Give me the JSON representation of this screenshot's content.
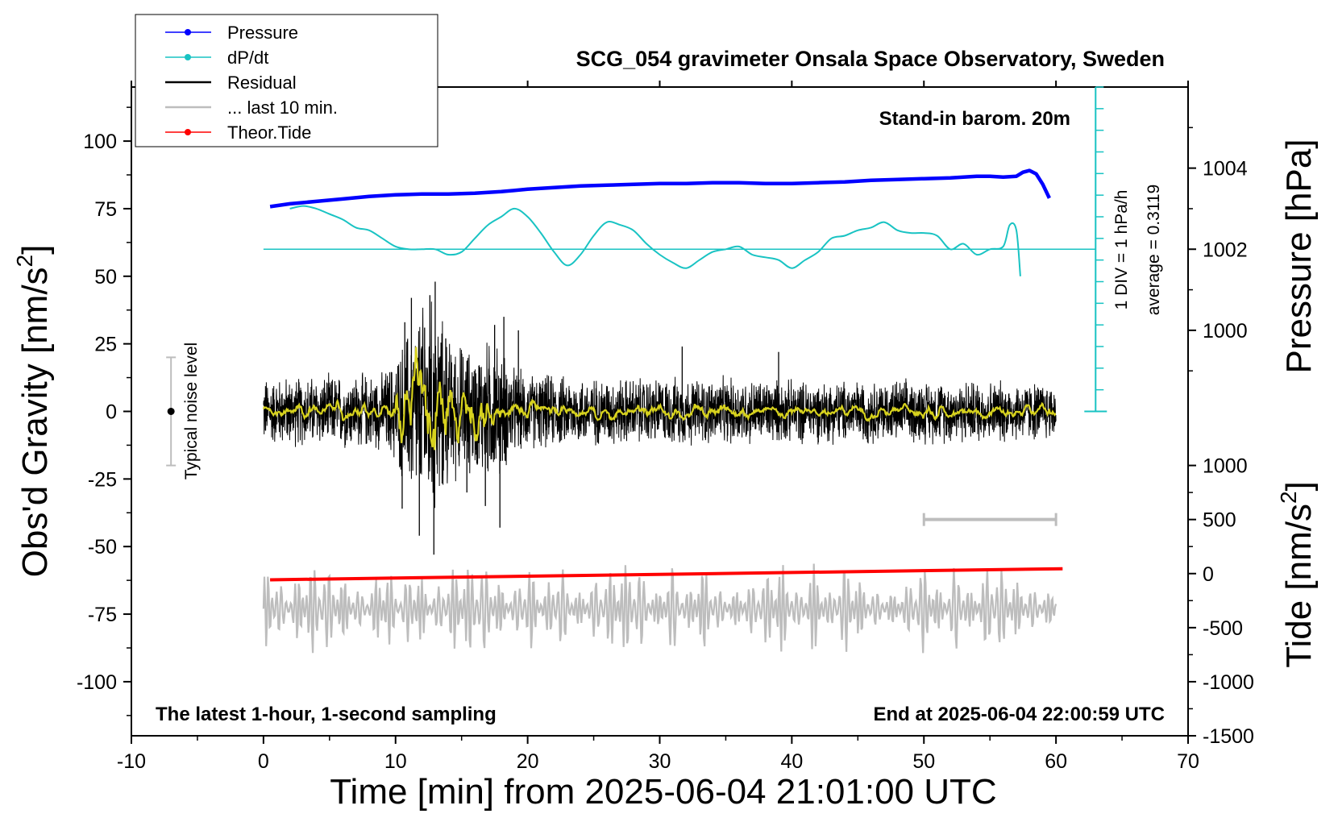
{
  "chart_data": {
    "type": "line",
    "title": "SCG_054 gravimeter Onsala Space Observatory, Sweden",
    "subtitle_right": "Stand-in barom. 20m",
    "footer_left": "The latest 1-hour, 1-second sampling",
    "footer_right": "End at 2025-06-04 22:00:59 UTC",
    "xlabel": "Time [min] from 2025-06-04 21:01:00 UTC",
    "ylabel_left": "Obs'd Gravity [nm/s",
    "ylabel_left_sup": "2",
    "ylabel_left_close": "]",
    "ylabel_right_top": "Pressure [hPa]",
    "ylabel_right_bottom": "Tide [nm/s",
    "ylabel_right_bottom_sup": "2",
    "ylabel_right_bottom_close": "]",
    "xlim": [
      -10,
      70
    ],
    "ylim_left": [
      -120,
      120
    ],
    "x_ticks": [
      "-10",
      "0",
      "10",
      "20",
      "30",
      "40",
      "50",
      "60",
      "70"
    ],
    "x_tick_values": [
      -10,
      0,
      10,
      20,
      30,
      40,
      50,
      60,
      70
    ],
    "y_ticks_left": [
      "100",
      "75",
      "50",
      "25",
      "0",
      "-25",
      "-50",
      "-75",
      "-100"
    ],
    "y_tick_values_left": [
      100,
      75,
      50,
      25,
      0,
      -25,
      -50,
      -75,
      -100
    ],
    "pressure_axis": {
      "ticks": [
        "1004",
        "1002",
        "1000"
      ],
      "values": [
        1004,
        1002,
        1000
      ],
      "ref_value": 1002,
      "ref_gravity": 60,
      "gravity_per_hpa": 15
    },
    "tide_axis": {
      "ticks": [
        "1000",
        "500",
        "0",
        "-500",
        "-1000",
        "-1500"
      ],
      "values": [
        1000,
        500,
        0,
        -500,
        -1000,
        -1500
      ],
      "zero_gravity": -60,
      "gravity_per_unit": 0.04
    },
    "dpdt_scale": {
      "label_div": "1 DIV = 1 hPa/h",
      "label_avg": "average = 0.3119",
      "x": 63,
      "y_top": 120,
      "y_bottom": 0,
      "div_step": 8
    },
    "noise_bar": {
      "label": "Typical noise level",
      "x": -7,
      "low": -20,
      "high": 20,
      "center": 0
    },
    "grey_scale_bar": {
      "x0": 50,
      "x1": 60,
      "y": -40
    },
    "legend": {
      "entries": [
        {
          "label": "Pressure",
          "color": "#0000ff",
          "marker": true
        },
        {
          "label": "dP/dt",
          "color": "#19c3c3",
          "marker": true
        },
        {
          "label": "Residual",
          "color": "#000000",
          "marker": false
        },
        {
          "label": "... last 10 min.",
          "color": "#bdbdbd",
          "marker": false
        },
        {
          "label": "Theor.Tide",
          "color": "#ff0000",
          "marker": true
        }
      ]
    },
    "series": [
      {
        "name": "Pressure",
        "color": "#0000ff",
        "x": [
          0.5,
          2,
          4,
          6,
          8,
          10,
          12,
          14,
          16,
          18,
          20,
          22,
          24,
          26,
          28,
          30,
          32,
          34,
          36,
          38,
          40,
          42,
          44,
          46,
          48,
          50,
          52,
          54,
          55,
          56,
          57,
          57.5,
          58,
          58.5,
          59,
          59.5
        ],
        "y": [
          1003.05,
          1003.12,
          1003.18,
          1003.24,
          1003.3,
          1003.34,
          1003.36,
          1003.36,
          1003.38,
          1003.42,
          1003.48,
          1003.52,
          1003.56,
          1003.58,
          1003.6,
          1003.62,
          1003.62,
          1003.64,
          1003.64,
          1003.62,
          1003.62,
          1003.64,
          1003.66,
          1003.7,
          1003.72,
          1003.74,
          1003.76,
          1003.8,
          1003.8,
          1003.78,
          1003.8,
          1003.9,
          1003.94,
          1003.86,
          1003.6,
          1003.26
        ]
      },
      {
        "name": "dP/dt",
        "color": "#19c3c3",
        "x": [
          2,
          3,
          4,
          5,
          6,
          7,
          8,
          9,
          10,
          11,
          12,
          13,
          14,
          15,
          16,
          17,
          18,
          19,
          20,
          21,
          22,
          23,
          24,
          25,
          26,
          27,
          28,
          29,
          30,
          31,
          32,
          33,
          34,
          35,
          36,
          37,
          38,
          39,
          40,
          41,
          42,
          43,
          44,
          45,
          46,
          47,
          48,
          49,
          50,
          51,
          52,
          53,
          54,
          55,
          56,
          56.5,
          57,
          57.3
        ],
        "y": [
          75,
          76,
          75,
          73,
          71,
          68,
          67,
          64,
          61,
          60,
          60,
          60,
          58,
          59,
          64,
          69,
          72,
          75,
          72,
          66,
          59,
          54,
          58,
          65,
          70,
          69,
          67,
          62,
          58,
          55,
          53,
          56,
          59,
          60,
          61,
          58,
          57,
          56,
          53,
          56,
          59,
          64,
          65,
          67,
          68,
          70,
          67,
          66,
          66,
          65,
          60,
          62,
          58,
          60,
          61,
          69,
          67,
          50
        ]
      },
      {
        "name": "dP/dt reference",
        "color": "#19c3c3",
        "x": [
          0,
          63
        ],
        "y": [
          60,
          60
        ]
      },
      {
        "name": "Residual",
        "color": "#000000",
        "x_range": [
          0,
          60
        ],
        "envelope_x": [
          0,
          5,
          9,
          10,
          11,
          12,
          13,
          14,
          15,
          16,
          17,
          18,
          19,
          20,
          22,
          25,
          30,
          35,
          40,
          45,
          50,
          55,
          60
        ],
        "envelope_amp": [
          14,
          15,
          16,
          22,
          35,
          44,
          47,
          30,
          28,
          25,
          30,
          27,
          18,
          16,
          15,
          14,
          14,
          14,
          13,
          13,
          13,
          13,
          12
        ],
        "spikes": [
          {
            "x": 10.5,
            "y": -36
          },
          {
            "x": 10.7,
            "y": 33
          },
          {
            "x": 11.2,
            "y": 42
          },
          {
            "x": 11.8,
            "y": -46
          },
          {
            "x": 12.2,
            "y": 31
          },
          {
            "x": 12.6,
            "y": 43
          },
          {
            "x": 12.9,
            "y": -53
          },
          {
            "x": 13.0,
            "y": 48
          },
          {
            "x": 13.8,
            "y": 27
          },
          {
            "x": 15.4,
            "y": -30
          },
          {
            "x": 16.8,
            "y": -35
          },
          {
            "x": 17.5,
            "y": 32
          },
          {
            "x": 17.9,
            "y": -43
          },
          {
            "x": 18.2,
            "y": 35
          },
          {
            "x": 19.3,
            "y": 30
          },
          {
            "x": 31.7,
            "y": 24
          },
          {
            "x": 39.0,
            "y": 22
          }
        ]
      },
      {
        "name": "Smoothed residual",
        "color": "#d7d21e",
        "x_range": [
          0,
          60
        ]
      },
      {
        "name": "... last 10 min.",
        "color": "#bdbdbd",
        "x_range": [
          0,
          60
        ],
        "center": -73,
        "amp_min": 6,
        "amp_max": 17
      },
      {
        "name": "Theor.Tide",
        "color": "#ff0000",
        "x": [
          0.5,
          60.5
        ],
        "y": [
          -62.3,
          -58.2
        ]
      }
    ]
  }
}
